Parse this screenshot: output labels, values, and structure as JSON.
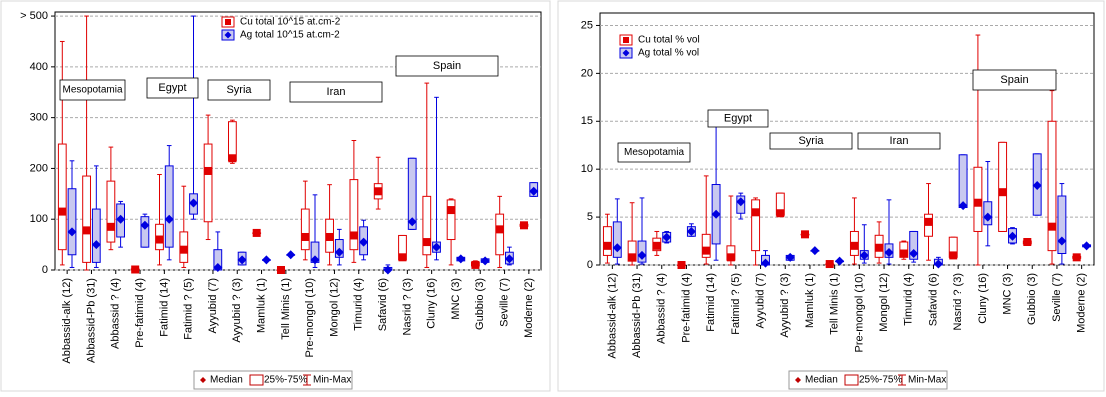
{
  "chart_data": [
    {
      "type": "box",
      "categories": [
        "Abbassid-alk (12)",
        "Abbassid-Pb (31)",
        "Abbassid ? (4)",
        "Pre-fatimid (4)",
        "Fatimid (14)",
        "Fatimid ? (5)",
        "Ayyubid (7)",
        "Ayyubid ? (3)",
        "Mamluk (1)",
        "Tell Minis (1)",
        "Pre-mongol (10)",
        "Mongol (12)",
        "Timurid (4)",
        "Safavid (6)",
        "Nasrid ? (3)",
        "Cluny (16)",
        "MNC (3)",
        "Gubbio (3)",
        "Seville (7)",
        "Moderne (2)"
      ],
      "ylim": [
        0,
        508
      ],
      "yticks": [
        0,
        100,
        200,
        300,
        400,
        {
          "value": 500,
          "label": "> 500"
        }
      ],
      "grid": true,
      "annotations": [
        "Mesopotamia",
        "Egypt",
        "Syria",
        "Iran",
        "Spain"
      ],
      "box_legend": [
        "Median",
        "25%-75%",
        "Min-Max"
      ],
      "series": [
        {
          "name": "Cu total 10^15 at.cm-2",
          "color": "#e00000",
          "min": [
            10,
            0,
            40,
            0,
            10,
            5,
            60,
            210,
            73,
            0,
            20,
            10,
            15,
            120,
            20,
            5,
            10,
            5,
            5,
            85
          ],
          "q1": [
            40,
            15,
            55,
            0,
            40,
            15,
            95,
            215,
            73,
            0,
            40,
            35,
            40,
            140,
            20,
            30,
            60,
            8,
            30,
            86
          ],
          "median": [
            115,
            78,
            85,
            1,
            60,
            40,
            195,
            220,
            73,
            0,
            65,
            65,
            68,
            155,
            25,
            55,
            118,
            10,
            80,
            88
          ],
          "q3": [
            248,
            185,
            175,
            2,
            90,
            75,
            248,
            292,
            73,
            0,
            120,
            100,
            178,
            170,
            68,
            145,
            138,
            15,
            110,
            90
          ],
          "max": [
            450,
            500,
            242,
            2,
            188,
            165,
            305,
            295,
            73,
            0,
            175,
            168,
            255,
            222,
            68,
            368,
            140,
            18,
            145,
            90
          ]
        },
        {
          "name": "Ag total 10^15 at.cm-2",
          "color": "#0000e0",
          "min": [
            5,
            5,
            45,
            45,
            20,
            100,
            0,
            10,
            20,
            30,
            5,
            10,
            20,
            0,
            80,
            20,
            18,
            15,
            10,
            145
          ],
          "q1": [
            30,
            15,
            65,
            45,
            45,
            110,
            0,
            10,
            20,
            30,
            15,
            25,
            30,
            0,
            80,
            35,
            18,
            15,
            12,
            145
          ],
          "median": [
            75,
            50,
            100,
            88,
            100,
            132,
            5,
            20,
            20,
            30,
            20,
            35,
            55,
            0,
            95,
            45,
            22,
            18,
            22,
            155
          ],
          "q3": [
            160,
            120,
            130,
            105,
            205,
            150,
            40,
            35,
            20,
            30,
            55,
            60,
            85,
            5,
            220,
            55,
            25,
            22,
            35,
            172
          ],
          "max": [
            215,
            205,
            135,
            110,
            245,
            500,
            75,
            35,
            20,
            30,
            148,
            80,
            98,
            10,
            220,
            340,
            25,
            22,
            45,
            172
          ]
        }
      ]
    },
    {
      "type": "box",
      "categories": [
        "Abbassid-alk (12)",
        "Abbassid-Pb (31)",
        "Abbassid ? (4)",
        "Pre-fatimid (4)",
        "Fatimid (14)",
        "Fatimid ? (5)",
        "Ayyubid (7)",
        "Ayyubid ? (3)",
        "Mamluk (1)",
        "Tell Minis (1)",
        "Pre-mongol (10)",
        "Mongol (12)",
        "Timurid (4)",
        "Safavid (6)",
        "Nasrid ? (3)",
        "Cluny (16)",
        "MNC (3)",
        "Gubbio (3)",
        "Seville (7)",
        "Moderne (2)"
      ],
      "ylim": [
        0,
        26.3
      ],
      "yticks": [
        0,
        5,
        10,
        15,
        20,
        25
      ],
      "grid": true,
      "annotations": [
        "Mesopotamia",
        "Egypt",
        "Syria",
        "Iran",
        "Spain"
      ],
      "box_legend": [
        "Median",
        "25%-75%",
        "Min-Max"
      ],
      "series": [
        {
          "name": "Cu total % vol",
          "color": "#e00000",
          "min": [
            0.2,
            0,
            1,
            0,
            0.1,
            0,
            0,
            5.2,
            3.2,
            0.1,
            0.1,
            0.2,
            0.6,
            0.5,
            0.8,
            0,
            3.5,
            2.2,
            0.1,
            0.7
          ],
          "q1": [
            1,
            0.4,
            1.5,
            0,
            0.8,
            0.5,
            1.5,
            5.2,
            3.2,
            0.1,
            1,
            0.8,
            0.8,
            3,
            0.8,
            3.5,
            3.5,
            2.2,
            1.5,
            0.7
          ],
          "median": [
            2,
            0.8,
            2,
            0,
            1.5,
            0.8,
            5.5,
            5.4,
            3.2,
            0.1,
            2,
            1.8,
            1.2,
            4.5,
            1,
            6.5,
            7.6,
            2.4,
            4,
            0.8
          ],
          "q3": [
            4,
            2.5,
            2.8,
            0,
            3.2,
            2,
            6.8,
            7.5,
            3.2,
            0.1,
            3.5,
            3.1,
            2.4,
            5.3,
            2.9,
            10.2,
            12.8,
            2.5,
            15,
            0.9
          ],
          "max": [
            5.3,
            6.5,
            3.5,
            0,
            9.3,
            7.2,
            7,
            7.5,
            3.2,
            0.1,
            7,
            4.5,
            2.5,
            8.5,
            2.9,
            24,
            12.8,
            2.5,
            18.2,
            0.9
          ]
        },
        {
          "name": "Ag total % vol",
          "color": "#0000e0",
          "min": [
            0.1,
            0.1,
            2.3,
            3,
            0.5,
            4.8,
            0,
            0.5,
            1.5,
            0.4,
            0.2,
            0.1,
            0.3,
            0,
            6,
            2,
            2.2,
            5.2,
            0.1,
            1.9
          ],
          "q1": [
            0.8,
            0.3,
            2.4,
            3,
            2.2,
            5.4,
            0,
            0.5,
            1.5,
            0.4,
            0.6,
            0.8,
            0.6,
            0,
            6,
            4.2,
            2.3,
            5.2,
            1.2,
            1.9
          ],
          "median": [
            1.8,
            1,
            2.9,
            3.5,
            5.3,
            6.6,
            0.2,
            0.8,
            1.5,
            0.4,
            1,
            1.3,
            1.2,
            0.1,
            6.2,
            5,
            3,
            8.3,
            2.5,
            2
          ],
          "q3": [
            4.5,
            2.5,
            3.4,
            4,
            8.4,
            7.2,
            1,
            1,
            1.5,
            0.4,
            1.5,
            2.2,
            3.5,
            0.6,
            11.5,
            6.6,
            3.8,
            11.6,
            7.2,
            2.1
          ],
          "max": [
            6.9,
            7,
            3.5,
            4.3,
            14.8,
            7.5,
            1.5,
            1,
            1.5,
            0.4,
            4.2,
            6.8,
            3.5,
            0.8,
            11.5,
            10.8,
            3.9,
            11.6,
            8.5,
            2.1
          ]
        }
      ]
    }
  ]
}
